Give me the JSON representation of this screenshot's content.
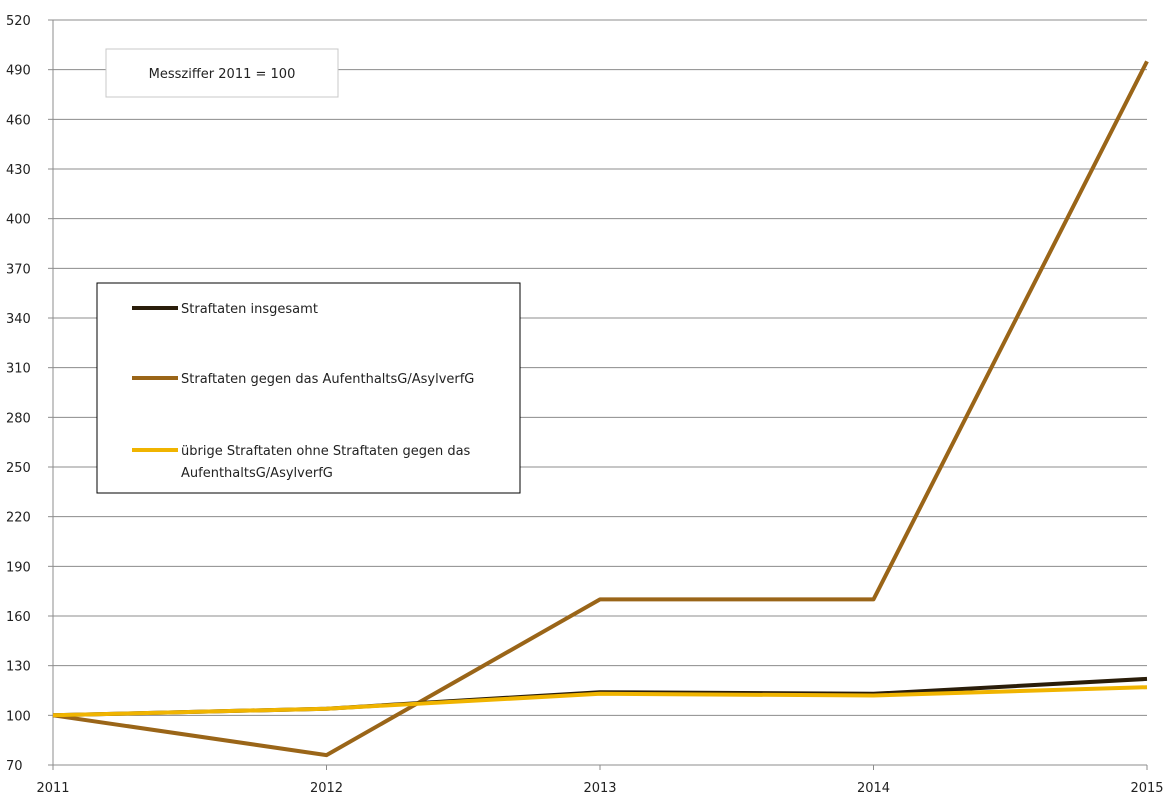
{
  "chart_data": {
    "type": "line",
    "title": "",
    "xlabel": "",
    "ylabel": "",
    "x": [
      "2011",
      "2012",
      "2013",
      "2014",
      "2015"
    ],
    "ylim": [
      70,
      520
    ],
    "yticks": [
      70,
      100,
      130,
      160,
      190,
      220,
      250,
      280,
      310,
      340,
      370,
      400,
      430,
      460,
      490,
      520
    ],
    "grid": "horizontal",
    "legend_position": "left",
    "annotation": "Messziffer 2011 = 100",
    "series": [
      {
        "name": "Straftaten insgesamt",
        "color": "#2a1d0a",
        "values": [
          100,
          104,
          114,
          113,
          122
        ]
      },
      {
        "name": "Straftaten gegen das AufenthaltsG/AsylverfG",
        "color": "#9a6518",
        "values": [
          100,
          76,
          170,
          170,
          495
        ]
      },
      {
        "name_lines": [
          "übrige Straftaten ohne Straftaten gegen das",
          "AufenthaltsG/AsylverfG"
        ],
        "color": "#f0b400",
        "values": [
          100,
          104,
          113,
          112,
          117
        ]
      }
    ]
  }
}
